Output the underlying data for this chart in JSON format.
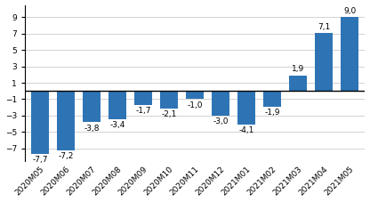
{
  "categories": [
    "2020M05",
    "2020M06",
    "2020M07",
    "2020M08",
    "2020M09",
    "2020M10",
    "2020M11",
    "2020M12",
    "2021M01",
    "2021M02",
    "2021M03",
    "2021M04",
    "2021M05"
  ],
  "values": [
    -7.7,
    -7.2,
    -3.8,
    -3.4,
    -1.7,
    -2.1,
    -1.0,
    -3.0,
    -4.1,
    -1.9,
    1.9,
    7.1,
    9.0
  ],
  "bar_color": "#2e74b5",
  "ylim": [
    -8.5,
    10.5
  ],
  "yticks": [
    -7,
    -5,
    -3,
    -1,
    1,
    3,
    5,
    7,
    9
  ],
  "label_fontsize": 6.5,
  "tick_fontsize": 6.5,
  "background_color": "#ffffff"
}
